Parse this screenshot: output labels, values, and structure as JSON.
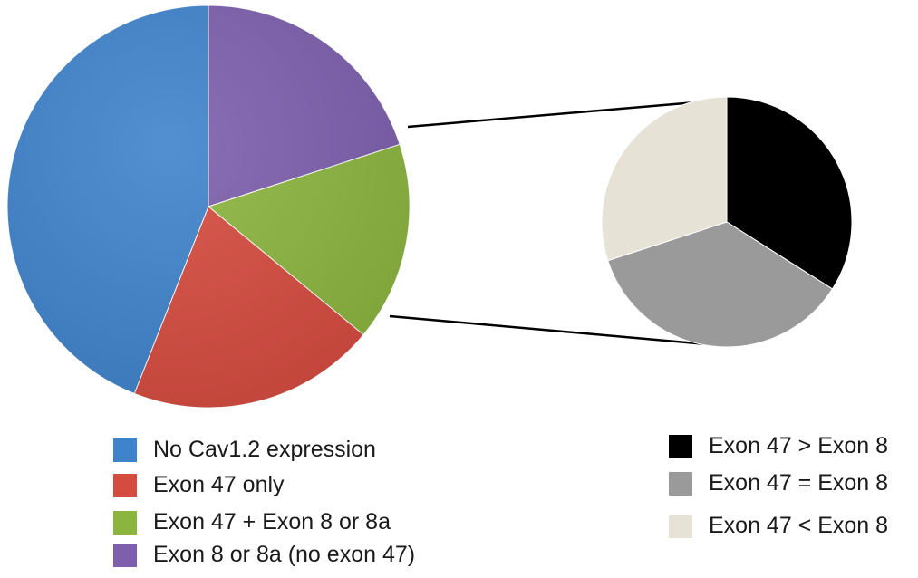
{
  "chart_data": [
    {
      "type": "pie",
      "title": "",
      "start_angle_deg": 0,
      "direction": "clockwise",
      "slices": [
        {
          "label": "Exon 8 or 8a (no exon 47)",
          "value": 20,
          "color": "#7d5fad"
        },
        {
          "label": "Exon 47 + Exon 8 or 8a",
          "value": 16,
          "color": "#8cb53f"
        },
        {
          "label": "Exon 47 only",
          "value": 20,
          "color": "#d64b3f"
        },
        {
          "label": "No Cav1.2 expression",
          "value": 44,
          "color": "#3f83cc"
        }
      ],
      "legend_placement": "bottom-left"
    },
    {
      "type": "pie",
      "title": "",
      "start_angle_deg": 0,
      "direction": "clockwise",
      "slices": [
        {
          "label": "Exon 47 > Exon 8",
          "value": 34,
          "color": "#000000"
        },
        {
          "label": "Exon 47 = Exon 8",
          "value": 36,
          "color": "#9a9a9a"
        },
        {
          "label": "Exon 47 < Exon 8",
          "value": 30,
          "color": "#e6e2d5"
        }
      ],
      "legend_placement": "bottom-right"
    }
  ],
  "legend_left": [
    {
      "label": "No Cav1.2 expression",
      "color": "#3f83cc"
    },
    {
      "label": "Exon 47 only",
      "color": "#d64b3f"
    },
    {
      "label": "Exon 47 + Exon 8 or 8a",
      "color": "#8cb53f"
    },
    {
      "label": "Exon 8 or 8a (no exon 47)",
      "color": "#7d5fad"
    }
  ],
  "legend_right": [
    {
      "label": "Exon 47 > Exon 8",
      "color": "#000000"
    },
    {
      "label": "Exon 47 = Exon 8",
      "color": "#9a9a9a"
    },
    {
      "label": "Exon 47 < Exon 8",
      "color": "#e6e2d5"
    }
  ]
}
